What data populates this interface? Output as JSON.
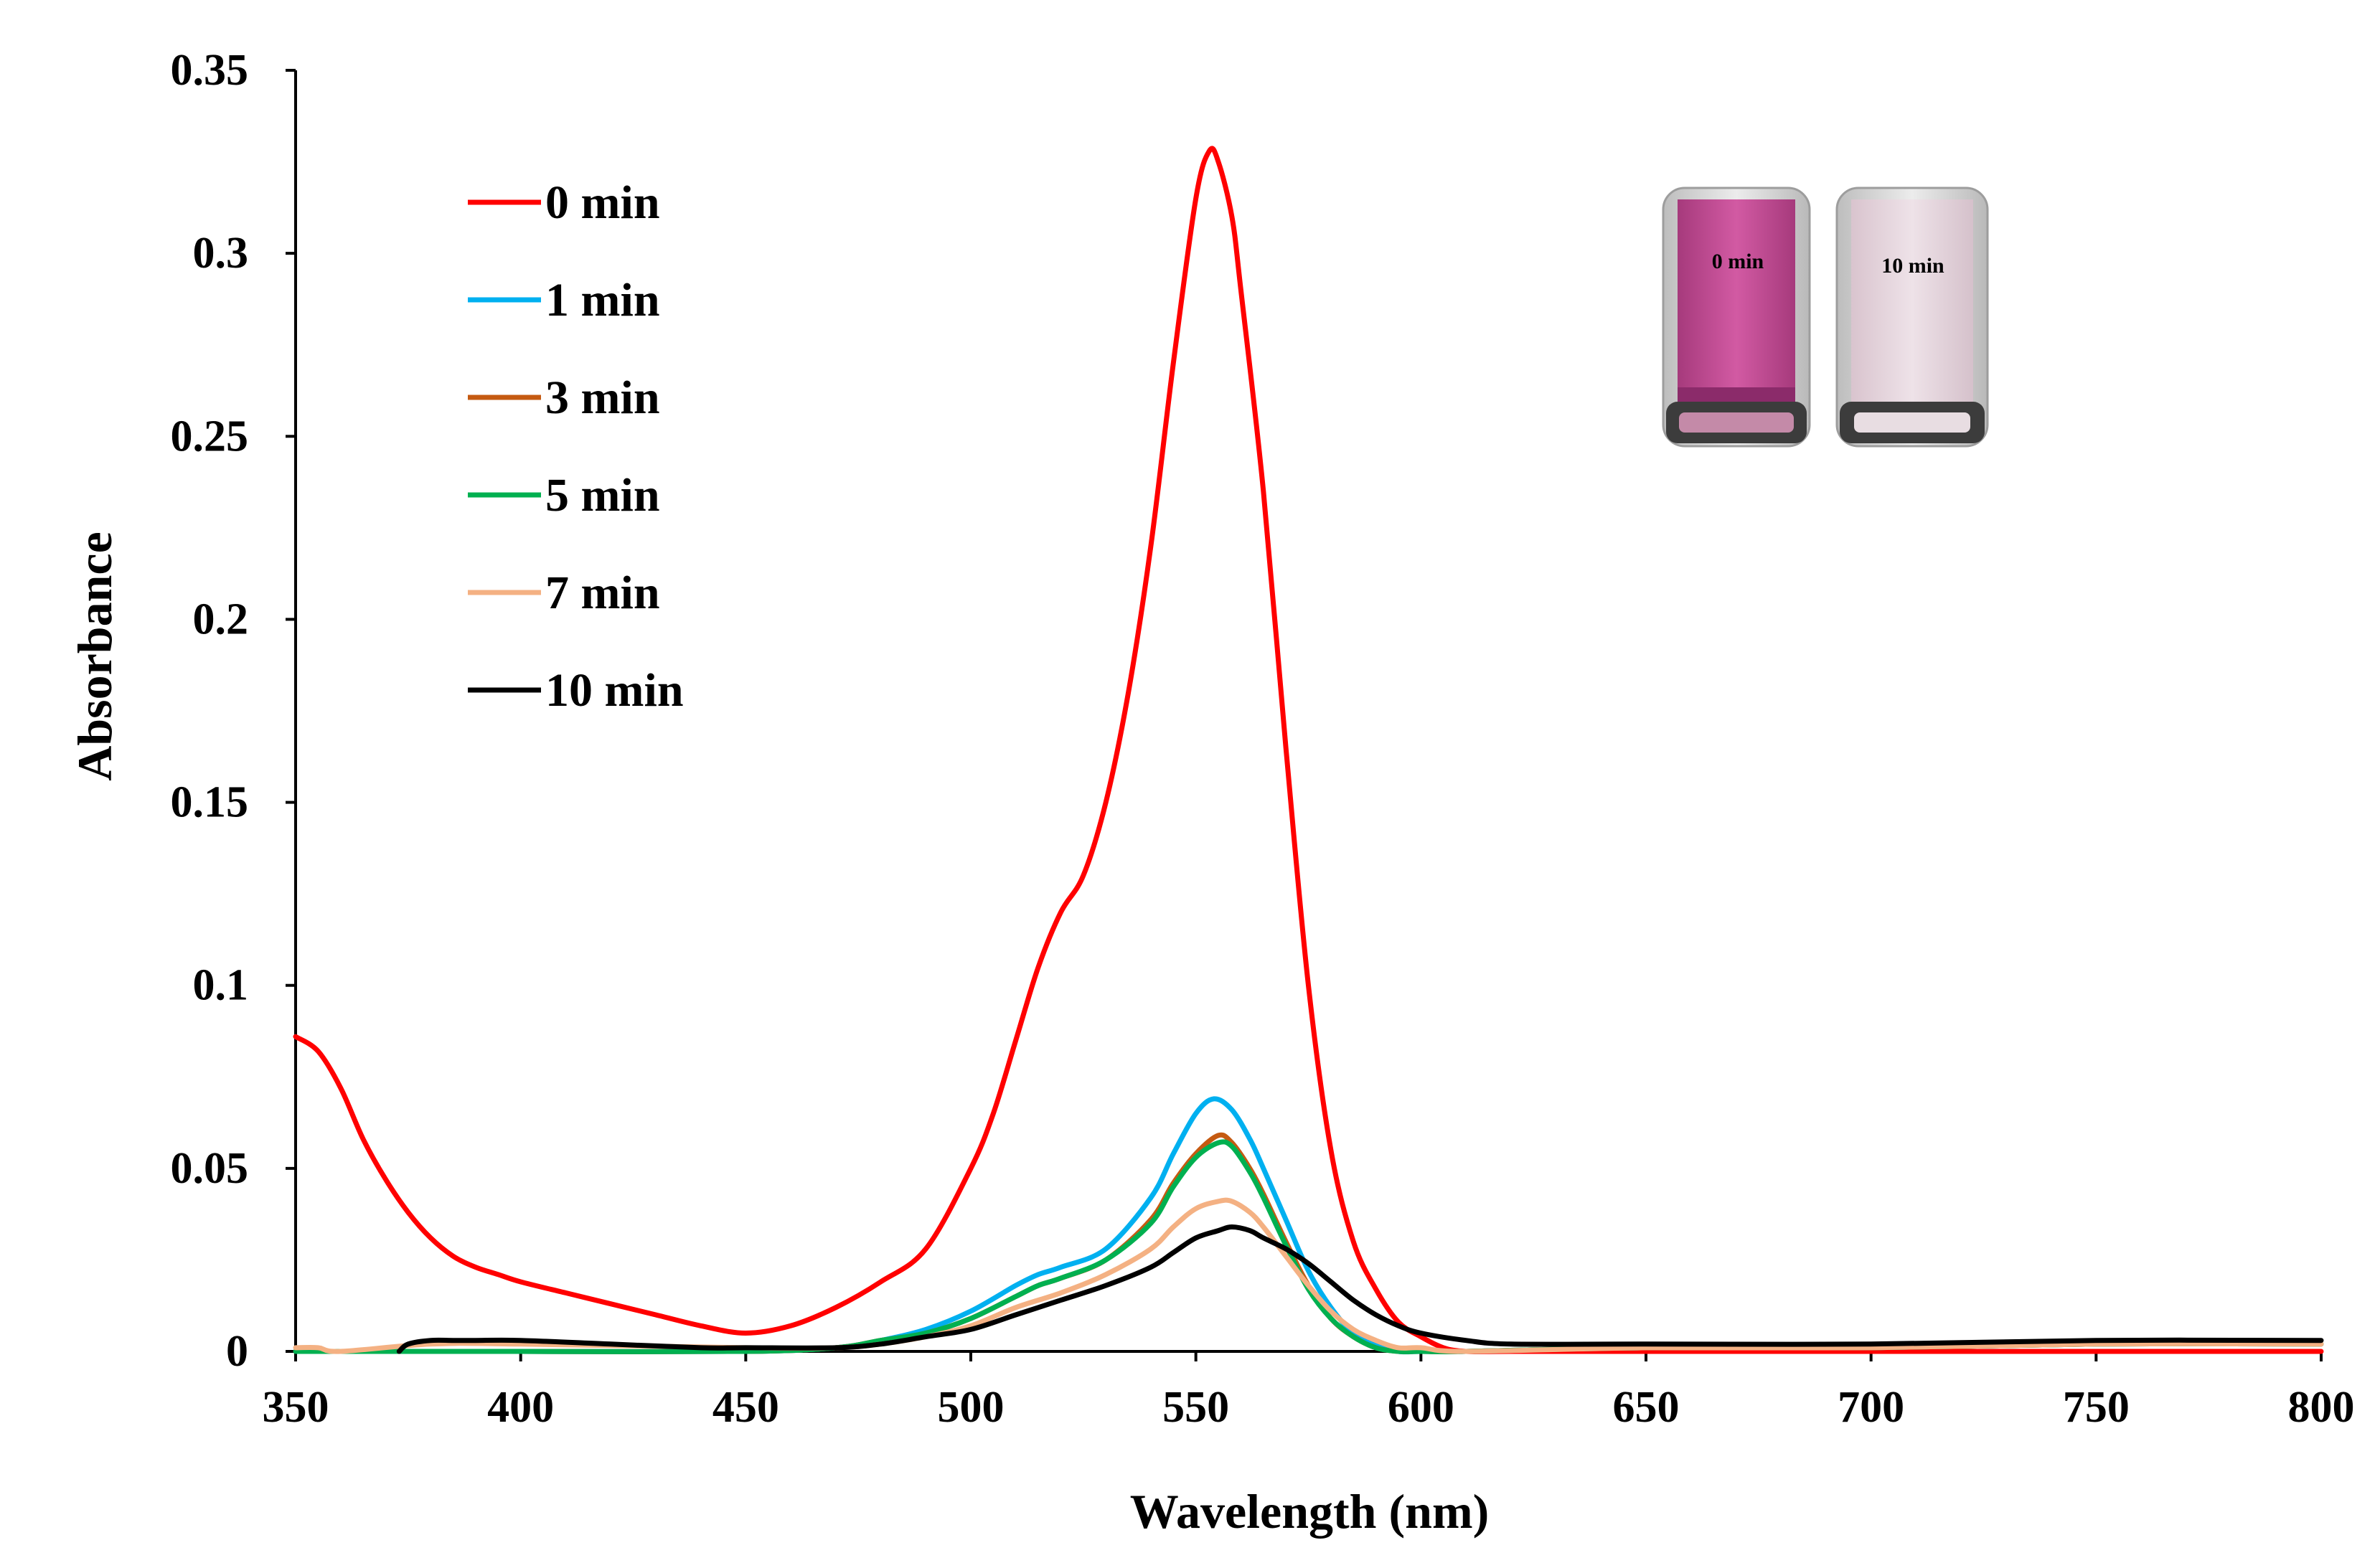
{
  "chart_data": {
    "type": "line",
    "title": "",
    "xlabel": "Wavelength (nm)",
    "ylabel": "Absorbance",
    "xlim": [
      350,
      800
    ],
    "ylim": [
      0,
      0.35
    ],
    "xticks": [
      "350",
      "400",
      "450",
      "500",
      "550",
      "600",
      "650",
      "700",
      "750",
      "800"
    ],
    "yticks": [
      "0",
      "0.05",
      "0.1",
      "0.15",
      "0.2",
      "0.25",
      "0.3",
      "0.35"
    ],
    "xtick_values": [
      350,
      400,
      450,
      500,
      550,
      600,
      650,
      700,
      750,
      800
    ],
    "ytick_values": [
      0,
      0.05,
      0.1,
      0.15,
      0.2,
      0.25,
      0.3,
      0.35
    ],
    "grid": false,
    "legend_position": "top-left",
    "series": [
      {
        "name": "0 min",
        "color": "#ff0000",
        "x": [
          350,
          355,
          360,
          365,
          370,
          375,
          380,
          385,
          390,
          395,
          400,
          410,
          420,
          430,
          440,
          450,
          460,
          470,
          480,
          490,
          500,
          505,
          510,
          515,
          520,
          525,
          530,
          535,
          540,
          545,
          550,
          553,
          555,
          558,
          560,
          565,
          570,
          575,
          580,
          585,
          590,
          595,
          600,
          605,
          610,
          620,
          650,
          700,
          750,
          800
        ],
        "y": [
          0.086,
          0.082,
          0.072,
          0.058,
          0.047,
          0.038,
          0.031,
          0.026,
          0.023,
          0.021,
          0.019,
          0.016,
          0.013,
          0.01,
          0.007,
          0.005,
          0.007,
          0.012,
          0.019,
          0.028,
          0.05,
          0.065,
          0.085,
          0.105,
          0.12,
          0.13,
          0.15,
          0.18,
          0.22,
          0.27,
          0.315,
          0.328,
          0.325,
          0.31,
          0.29,
          0.235,
          0.165,
          0.1,
          0.055,
          0.03,
          0.017,
          0.008,
          0.004,
          0.001,
          0.0,
          0.0,
          0.0,
          0.0,
          0.0,
          0.0
        ]
      },
      {
        "name": "1 min",
        "color": "#00b0f0",
        "x": [
          350,
          380,
          400,
          450,
          470,
          480,
          490,
          500,
          510,
          515,
          520,
          530,
          540,
          545,
          550,
          554,
          558,
          562,
          565,
          570,
          575,
          580,
          585,
          590,
          595,
          600,
          610,
          650,
          700,
          750,
          800
        ],
        "y": [
          0.0,
          0.0,
          0.0,
          0.0,
          0.001,
          0.003,
          0.006,
          0.011,
          0.018,
          0.021,
          0.023,
          0.028,
          0.042,
          0.054,
          0.065,
          0.069,
          0.066,
          0.058,
          0.05,
          0.036,
          0.022,
          0.012,
          0.005,
          0.002,
          0.0,
          0.0,
          0.0,
          0.001,
          0.001,
          0.002,
          0.002
        ]
      },
      {
        "name": "3 min",
        "color": "#c55a11",
        "x": [
          350,
          380,
          400,
          450,
          470,
          480,
          490,
          500,
          510,
          515,
          520,
          530,
          540,
          545,
          550,
          555,
          558,
          562,
          565,
          570,
          575,
          580,
          585,
          590,
          595,
          600,
          610,
          650,
          700,
          750,
          800
        ],
        "y": [
          0.0,
          0.0,
          0.0,
          0.0,
          0.001,
          0.003,
          0.005,
          0.009,
          0.015,
          0.018,
          0.02,
          0.025,
          0.036,
          0.046,
          0.054,
          0.059,
          0.057,
          0.05,
          0.043,
          0.03,
          0.018,
          0.009,
          0.004,
          0.001,
          0.0,
          0.0,
          0.0,
          0.001,
          0.001,
          0.002,
          0.002
        ]
      },
      {
        "name": "5 min",
        "color": "#00b050",
        "x": [
          350,
          380,
          400,
          450,
          470,
          480,
          490,
          500,
          510,
          515,
          520,
          530,
          540,
          545,
          550,
          555,
          558,
          562,
          565,
          570,
          575,
          580,
          585,
          590,
          595,
          600,
          610,
          650,
          700,
          750,
          800
        ],
        "y": [
          0.0,
          0.0,
          0.0,
          0.0,
          0.001,
          0.003,
          0.005,
          0.009,
          0.015,
          0.018,
          0.02,
          0.025,
          0.035,
          0.045,
          0.053,
          0.057,
          0.056,
          0.049,
          0.042,
          0.029,
          0.017,
          0.009,
          0.004,
          0.001,
          0.0,
          0.0,
          0.0,
          0.001,
          0.001,
          0.002,
          0.002
        ]
      },
      {
        "name": "7 min",
        "color": "#f4b183",
        "x": [
          350,
          355,
          360,
          380,
          400,
          450,
          470,
          480,
          490,
          500,
          510,
          520,
          530,
          540,
          545,
          550,
          555,
          558,
          562,
          565,
          570,
          575,
          580,
          585,
          590,
          595,
          600,
          610,
          650,
          700,
          750,
          800
        ],
        "y": [
          0.001,
          0.001,
          0.0,
          0.002,
          0.002,
          0.001,
          0.001,
          0.002,
          0.004,
          0.007,
          0.012,
          0.016,
          0.021,
          0.028,
          0.034,
          0.039,
          0.041,
          0.041,
          0.038,
          0.034,
          0.026,
          0.018,
          0.011,
          0.006,
          0.003,
          0.001,
          0.001,
          0.0,
          0.001,
          0.001,
          0.002,
          0.002
        ]
      },
      {
        "name": "10 min",
        "color": "#000000",
        "x": [
          373,
          375,
          380,
          385,
          390,
          400,
          420,
          440,
          450,
          470,
          480,
          490,
          500,
          510,
          520,
          530,
          540,
          545,
          550,
          555,
          558,
          562,
          565,
          570,
          575,
          580,
          585,
          590,
          595,
          600,
          610,
          620,
          650,
          700,
          750,
          800
        ],
        "y": [
          0.0,
          0.002,
          0.003,
          0.003,
          0.003,
          0.003,
          0.002,
          0.001,
          0.001,
          0.001,
          0.002,
          0.004,
          0.006,
          0.01,
          0.014,
          0.018,
          0.023,
          0.027,
          0.031,
          0.033,
          0.034,
          0.033,
          0.031,
          0.028,
          0.024,
          0.019,
          0.014,
          0.01,
          0.007,
          0.005,
          0.003,
          0.002,
          0.002,
          0.002,
          0.003,
          0.003
        ]
      }
    ],
    "inset": {
      "cuvette_left": {
        "label": "0 min",
        "fill": "#c8509b"
      },
      "cuvette_right": {
        "label": "10 min",
        "fill": "#e6d5dd"
      }
    }
  }
}
